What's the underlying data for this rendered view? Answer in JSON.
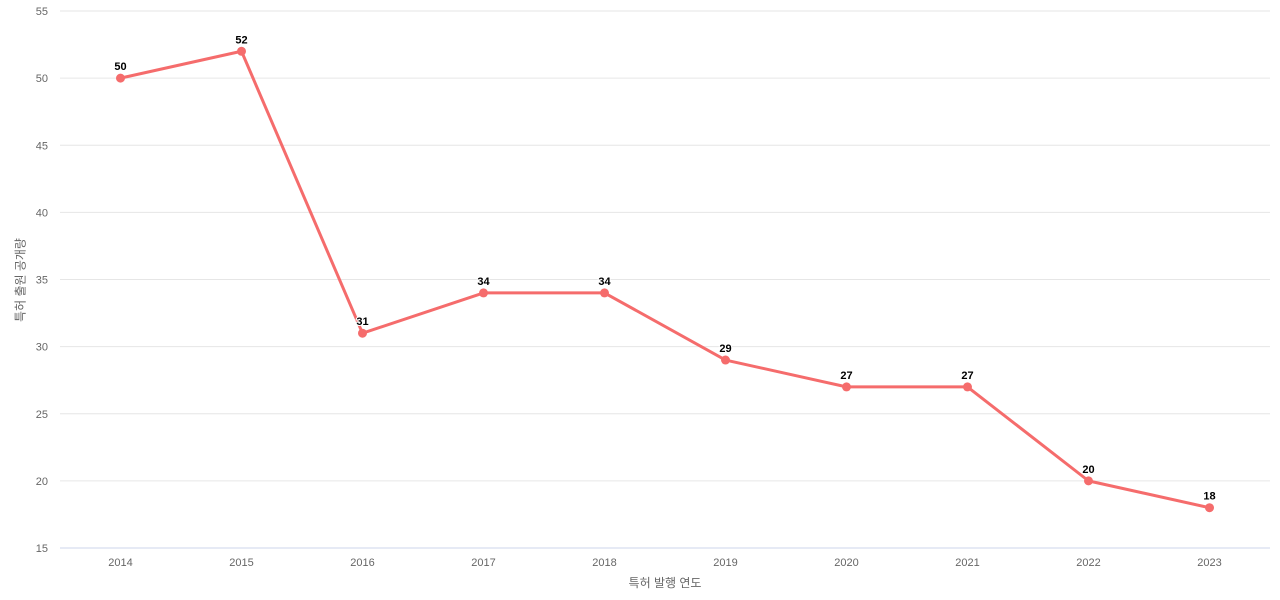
{
  "chart_data": {
    "type": "line",
    "title": "",
    "categories": [
      "2014",
      "2015",
      "2016",
      "2017",
      "2018",
      "2019",
      "2020",
      "2021",
      "2022",
      "2023"
    ],
    "series": [
      {
        "values": [
          50,
          52,
          31,
          34,
          34,
          29,
          27,
          27,
          20,
          18
        ],
        "color": "#f56c6c"
      }
    ],
    "xlabel": "특허 발행 연도",
    "ylabel": "특허 출원 공개량",
    "ylim": [
      15,
      55
    ],
    "yticks": [
      15,
      20,
      25,
      30,
      35,
      40,
      45,
      50,
      55
    ],
    "grid": true,
    "legend": "none",
    "data_labels": true
  },
  "colors": {
    "background": "#ffffff",
    "gridline": "#e6e6e6",
    "axis_line": "#ccd6eb",
    "tick_label": "#666666",
    "axis_title": "#666666",
    "data_label": "#000000",
    "series": "#f56c6c"
  }
}
